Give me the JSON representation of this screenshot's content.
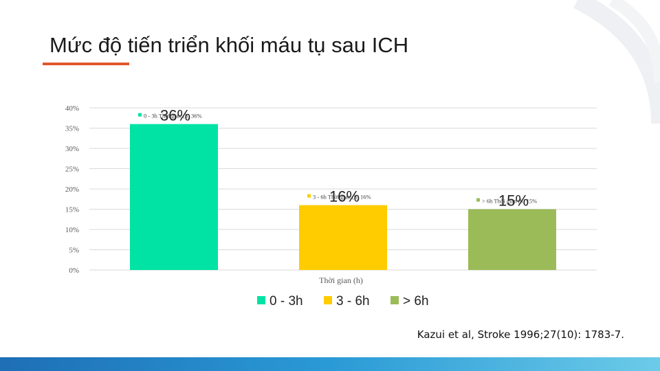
{
  "slide": {
    "title": "Mức độ tiến triển khối máu tụ sau ICH",
    "citation": "Kazui et al, Stroke 1996;27(10): 1783-7.",
    "accent_color": "#e0572e"
  },
  "chart_data": {
    "type": "bar",
    "title": "",
    "xlabel": "Thời gian (h)",
    "ylabel": "",
    "ylim": [
      0,
      0.4
    ],
    "yticks": [
      "0%",
      "5%",
      "10%",
      "15%",
      "20%",
      "25%",
      "30%",
      "35%",
      "40%"
    ],
    "categories": [
      "0 - 3h",
      "3 - 6h",
      "> 6h"
    ],
    "values": [
      0.36,
      0.16,
      0.15
    ],
    "value_labels": [
      "36%",
      "16%",
      "15%"
    ],
    "colors": [
      "#00e3a5",
      "#ffcc00",
      "#9bbb59"
    ],
    "grid": true,
    "legend": "bottom",
    "data_label_details": [
      "0 - 3h Thời gian (h) 36%",
      "3 - 6h Thời gian (h) 16%",
      "> 6h Thời gian (h) 15%"
    ]
  }
}
